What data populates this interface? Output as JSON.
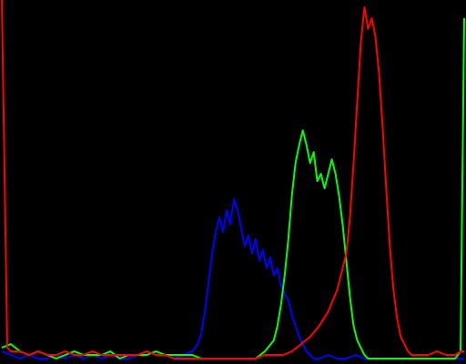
{
  "colors": {
    "background": "#000000",
    "blue": "#0000ff",
    "green": "#00ff00",
    "red": "#ff0000"
  },
  "chart_data": {
    "type": "line",
    "title": "",
    "xlabel": "",
    "ylabel": "",
    "xlim": [
      0,
      255
    ],
    "ylim": [
      0,
      1
    ],
    "grid": false,
    "legend": "none",
    "series": [
      {
        "color": "#0000ff",
        "x": [
          0,
          5,
          10,
          15,
          20,
          25,
          30,
          35,
          40,
          45,
          50,
          55,
          60,
          65,
          70,
          75,
          80,
          85,
          90,
          95,
          100,
          105,
          108,
          110,
          112,
          114,
          116,
          118,
          120,
          122,
          124,
          126,
          128,
          130,
          132,
          134,
          136,
          138,
          140,
          142,
          144,
          146,
          148,
          150,
          152,
          154,
          156,
          158,
          160,
          162,
          164,
          166,
          168,
          170,
          172,
          175,
          180,
          185,
          190,
          195,
          200,
          205,
          210,
          215,
          220,
          225,
          230,
          235,
          240,
          245,
          250,
          253,
          255
        ],
        "values": [
          0.03,
          0.02,
          0.01,
          0.02,
          0.01,
          0.01,
          0.02,
          0.01,
          0.02,
          0.01,
          0.02,
          0.01,
          0.02,
          0.01,
          0.01,
          0.02,
          0.03,
          0.02,
          0.02,
          0.01,
          0.02,
          0.03,
          0.05,
          0.08,
          0.14,
          0.22,
          0.3,
          0.36,
          0.4,
          0.36,
          0.42,
          0.38,
          0.45,
          0.42,
          0.37,
          0.32,
          0.35,
          0.3,
          0.34,
          0.28,
          0.31,
          0.26,
          0.29,
          0.24,
          0.26,
          0.21,
          0.19,
          0.17,
          0.13,
          0.1,
          0.07,
          0.05,
          0.03,
          0.02,
          0.01,
          0.01,
          0.02,
          0.01,
          0.01,
          0.02,
          0.01,
          0.01,
          0.01,
          0.01,
          0.01,
          0.01,
          0.01,
          0.01,
          0.01,
          0.01,
          0.01,
          0.01,
          0.01
        ]
      },
      {
        "color": "#00ff00",
        "x": [
          0,
          5,
          10,
          15,
          20,
          25,
          30,
          35,
          40,
          45,
          50,
          55,
          60,
          65,
          70,
          75,
          80,
          85,
          90,
          95,
          100,
          105,
          110,
          115,
          120,
          125,
          130,
          135,
          140,
          145,
          150,
          152,
          154,
          156,
          158,
          160,
          162,
          164,
          166,
          168,
          170,
          172,
          174,
          176,
          178,
          180,
          182,
          184,
          186,
          188,
          190,
          192,
          194,
          196,
          198,
          200,
          202,
          205,
          210,
          215,
          220,
          225,
          230,
          235,
          240,
          245,
          250,
          253,
          255
        ],
        "values": [
          0.04,
          0.05,
          0.03,
          0.02,
          0.03,
          0.02,
          0.01,
          0.02,
          0.03,
          0.02,
          0.02,
          0.02,
          0.03,
          0.01,
          0.02,
          0.02,
          0.02,
          0.03,
          0.02,
          0.02,
          0.02,
          0.02,
          0.01,
          0.01,
          0.01,
          0.01,
          0.01,
          0.01,
          0.01,
          0.03,
          0.06,
          0.1,
          0.16,
          0.24,
          0.34,
          0.46,
          0.55,
          0.6,
          0.64,
          0.6,
          0.55,
          0.58,
          0.5,
          0.52,
          0.48,
          0.52,
          0.56,
          0.52,
          0.46,
          0.38,
          0.28,
          0.18,
          0.1,
          0.06,
          0.04,
          0.02,
          0.01,
          0.01,
          0.01,
          0.01,
          0.01,
          0.01,
          0.01,
          0.01,
          0.01,
          0.01,
          0.01,
          0.03,
          0.95
        ]
      },
      {
        "color": "#ff0000",
        "x": [
          0,
          3,
          5,
          10,
          15,
          20,
          25,
          30,
          35,
          40,
          45,
          50,
          55,
          60,
          65,
          70,
          75,
          80,
          85,
          90,
          95,
          100,
          105,
          110,
          115,
          120,
          125,
          130,
          135,
          140,
          145,
          150,
          155,
          160,
          165,
          170,
          175,
          180,
          185,
          190,
          192,
          194,
          196,
          198,
          200,
          202,
          204,
          206,
          208,
          210,
          212,
          214,
          216,
          218,
          220,
          222,
          224,
          226,
          228,
          230,
          232,
          235,
          240,
          245,
          250,
          253,
          255
        ],
        "values": [
          1.0,
          0.04,
          0.03,
          0.03,
          0.02,
          0.03,
          0.02,
          0.02,
          0.03,
          0.02,
          0.02,
          0.03,
          0.02,
          0.02,
          0.02,
          0.02,
          0.02,
          0.03,
          0.02,
          0.02,
          0.01,
          0.01,
          0.01,
          0.01,
          0.01,
          0.01,
          0.01,
          0.01,
          0.01,
          0.01,
          0.02,
          0.02,
          0.02,
          0.03,
          0.05,
          0.07,
          0.1,
          0.14,
          0.2,
          0.3,
          0.4,
          0.55,
          0.72,
          0.88,
          0.98,
          0.92,
          0.95,
          0.9,
          0.8,
          0.65,
          0.48,
          0.32,
          0.2,
          0.12,
          0.07,
          0.05,
          0.03,
          0.02,
          0.02,
          0.02,
          0.02,
          0.02,
          0.03,
          0.02,
          0.02,
          0.03,
          0.03
        ]
      }
    ]
  }
}
